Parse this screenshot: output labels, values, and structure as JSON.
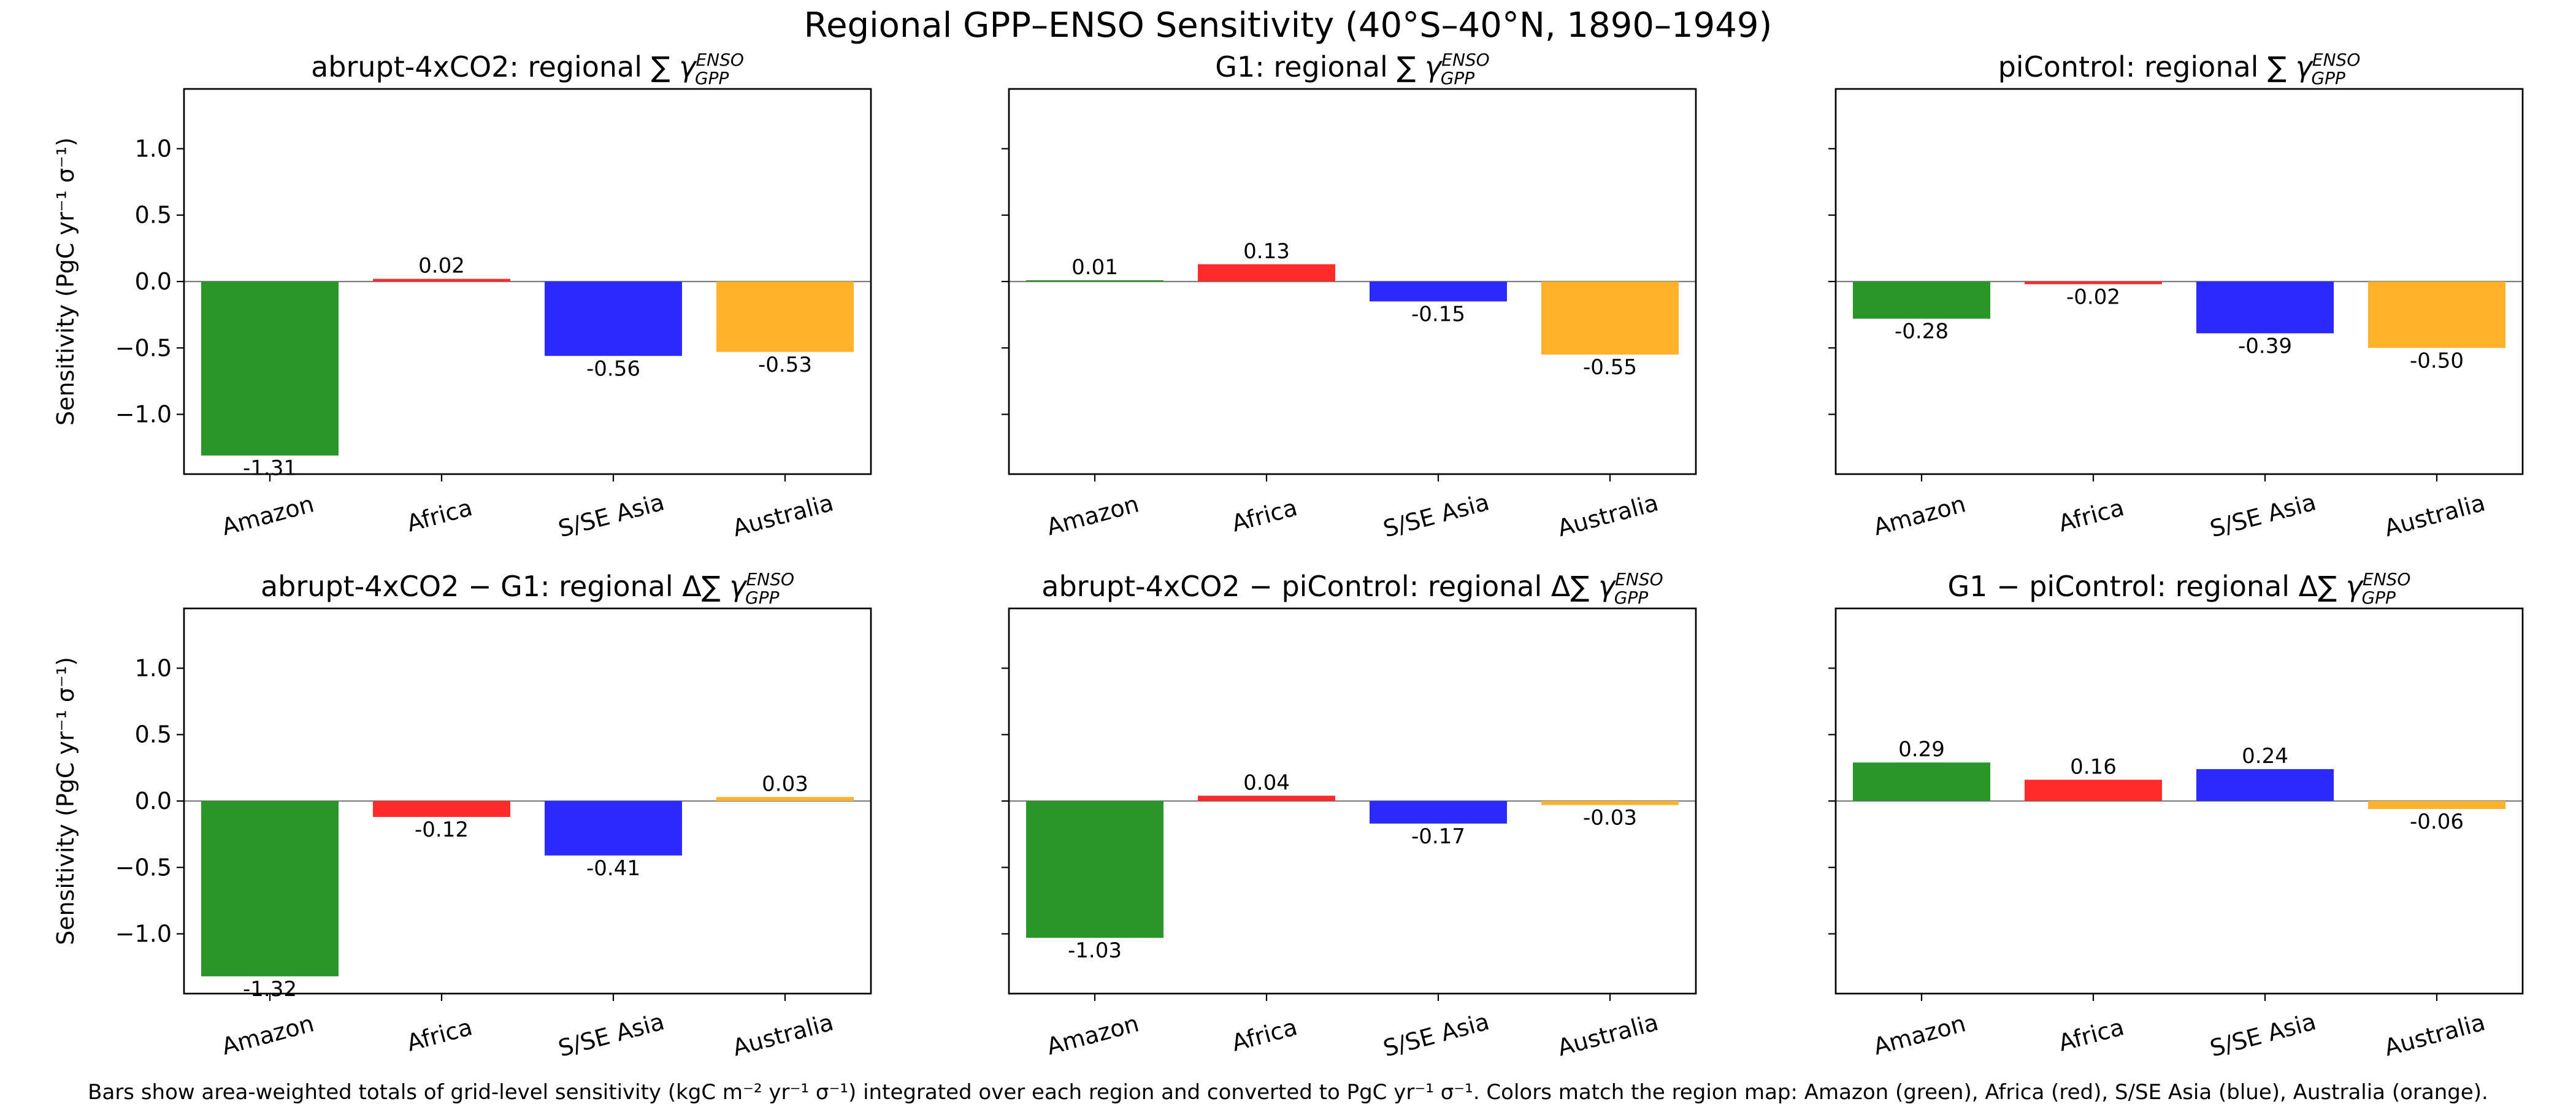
{
  "chart_data": {
    "type": "bar",
    "title": "Regional GPP–ENSO Sensitivity (40°S–40°N, 1890–1949)",
    "ylabel": "Sensitivity (PgC yr⁻¹ σ⁻¹)",
    "ylim": [
      -1.45,
      1.45
    ],
    "yticks": [
      1.0,
      0.5,
      0.0,
      -0.5,
      -1.0
    ],
    "ytick_labels": [
      "1.0",
      "0.5",
      "0.0",
      "−0.5",
      "−1.0"
    ],
    "categories": [
      "Amazon",
      "Africa",
      "S/SE Asia",
      "Australia"
    ],
    "colors": [
      "#2a962a",
      "#ff2a2a",
      "#2a2aff",
      "#ffb22a"
    ],
    "panels": [
      {
        "title_main": "abrupt-4xCO2: regional ∑ ",
        "title_greek": "γ",
        "values": [
          -1.31,
          0.02,
          -0.56,
          -0.53
        ],
        "value_labels": [
          "-1.31",
          "0.02",
          "-0.56",
          "-0.53"
        ]
      },
      {
        "title_main": "G1: regional ∑ ",
        "title_greek": "γ",
        "values": [
          0.01,
          0.13,
          -0.15,
          -0.55
        ],
        "value_labels": [
          "0.01",
          "0.13",
          "-0.15",
          "-0.55"
        ]
      },
      {
        "title_main": "piControl: regional ∑ ",
        "title_greek": "γ",
        "values": [
          -0.28,
          -0.02,
          -0.39,
          -0.5
        ],
        "value_labels": [
          "-0.28",
          "-0.02",
          "-0.39",
          "-0.50"
        ]
      },
      {
        "title_main": "abrupt-4xCO2 − G1: regional Δ∑ ",
        "title_greek": "γ",
        "values": [
          -1.32,
          -0.12,
          -0.41,
          0.03
        ],
        "value_labels": [
          "-1.32",
          "-0.12",
          "-0.41",
          "0.03"
        ]
      },
      {
        "title_main": "abrupt-4xCO2 − piControl: regional Δ∑ ",
        "title_greek": "γ",
        "values": [
          -1.03,
          0.04,
          -0.17,
          -0.03
        ],
        "value_labels": [
          "-1.03",
          "0.04",
          "-0.17",
          "-0.03"
        ]
      },
      {
        "title_main": "G1 − piControl: regional Δ∑ ",
        "title_greek": "γ",
        "values": [
          0.29,
          0.16,
          0.24,
          -0.06
        ],
        "value_labels": [
          "0.29",
          "0.16",
          "0.24",
          "-0.06"
        ]
      }
    ],
    "title_superscript": "ENSO",
    "title_subscript": "GPP",
    "caption": "Bars show area-weighted totals of grid-level sensitivity (kgC m⁻² yr⁻¹ σ⁻¹) integrated over each region and converted to PgC yr⁻¹ σ⁻¹. Colors match the region map: Amazon (green), Africa (red), S/SE Asia (blue), Australia (orange)."
  }
}
